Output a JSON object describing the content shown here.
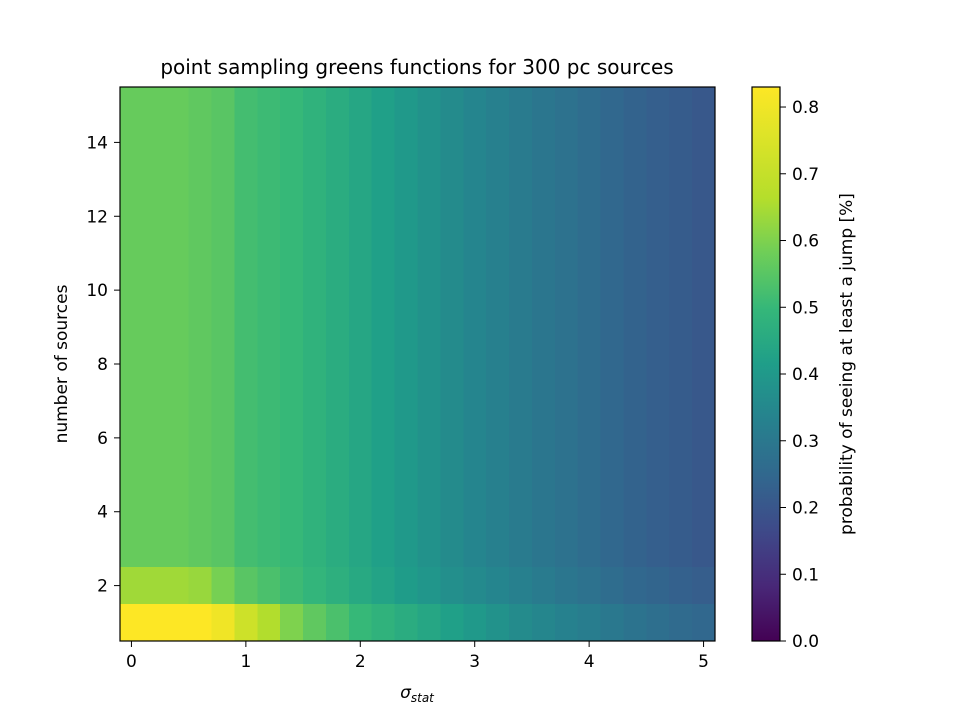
{
  "chart_data": {
    "type": "heatmap",
    "title": "point sampling greens functions for 300 pc sources",
    "xlabel": {
      "base": "σ",
      "sub": "stat"
    },
    "ylabel": "number of sources",
    "colorbar_label": "probability of seeing at least a jump [%]",
    "colormap": "viridis",
    "clim": [
      0.0,
      0.83
    ],
    "xlim": [
      -0.1,
      5.1
    ],
    "ylim": [
      0.5,
      15.5
    ],
    "x_ticks": [
      0,
      1,
      2,
      3,
      4,
      5
    ],
    "y_ticks": [
      2,
      4,
      6,
      8,
      10,
      12,
      14
    ],
    "colorbar_ticks": [
      0.0,
      0.1,
      0.2,
      0.3,
      0.4,
      0.5,
      0.6,
      0.7,
      0.8
    ],
    "x": [
      0.0,
      0.2,
      0.4,
      0.6,
      0.8,
      1.0,
      1.2,
      1.4,
      1.6,
      1.8,
      2.0,
      2.2,
      2.4,
      2.6,
      2.8,
      3.0,
      3.2,
      3.4,
      3.6,
      3.8,
      4.0,
      4.2,
      4.4,
      4.6,
      4.8,
      5.0
    ],
    "y": [
      1,
      2,
      3,
      4,
      5,
      6,
      7,
      8,
      9,
      10,
      11,
      12,
      13,
      14,
      15
    ],
    "values_first_row_y1": [
      0.83,
      0.83,
      0.83,
      0.83,
      0.8,
      0.72,
      0.66,
      0.6,
      0.56,
      0.53,
      0.5,
      0.48,
      0.46,
      0.44,
      0.42,
      0.4,
      0.38,
      0.36,
      0.345,
      0.33,
      0.315,
      0.3,
      0.285,
      0.27,
      0.26,
      0.25
    ],
    "values_second_row_y2": [
      0.64,
      0.64,
      0.64,
      0.63,
      0.59,
      0.55,
      0.53,
      0.51,
      0.49,
      0.47,
      0.45,
      0.43,
      0.41,
      0.39,
      0.37,
      0.355,
      0.34,
      0.325,
      0.31,
      0.295,
      0.28,
      0.265,
      0.25,
      0.24,
      0.23,
      0.22
    ],
    "values_rows_y3_to_y15_approx": [
      0.57,
      0.57,
      0.57,
      0.56,
      0.55,
      0.52,
      0.51,
      0.5,
      0.48,
      0.46,
      0.44,
      0.42,
      0.4,
      0.38,
      0.36,
      0.34,
      0.325,
      0.31,
      0.295,
      0.28,
      0.265,
      0.25,
      0.235,
      0.225,
      0.215,
      0.205
    ]
  }
}
